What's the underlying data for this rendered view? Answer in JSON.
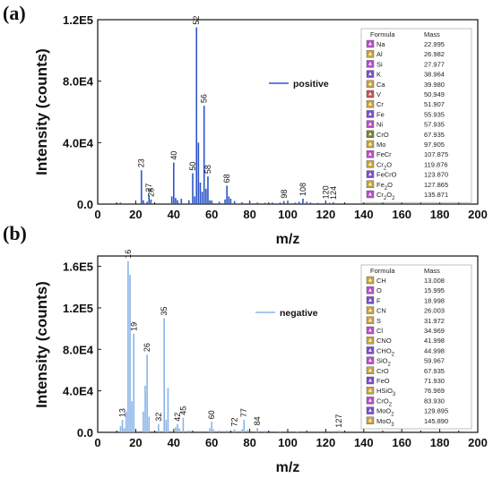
{
  "chart_data": [
    {
      "panel": "(a)",
      "type": "bar",
      "xlabel": "m/z",
      "ylabel": "Intensity (counts)",
      "xlim": [
        0,
        200
      ],
      "ylim": [
        0,
        120000
      ],
      "xticks": [
        "0",
        "20",
        "40",
        "60",
        "80",
        "100",
        "120",
        "140",
        "160",
        "180",
        "200"
      ],
      "yticks": [
        "0.0",
        "4.0E4",
        "8.0E4",
        "1.2E5"
      ],
      "series_name": "positive",
      "color": "#2e56c9",
      "peaks": [
        {
          "x": 23,
          "y": 22000,
          "label": "23"
        },
        {
          "x": 27,
          "y": 6000,
          "label": "27"
        },
        {
          "x": 28,
          "y": 3000,
          "label": "28"
        },
        {
          "x": 40,
          "y": 27000,
          "label": "40"
        },
        {
          "x": 50,
          "y": 20000,
          "label": "50"
        },
        {
          "x": 52,
          "y": 115000,
          "label": "52"
        },
        {
          "x": 56,
          "y": 64000,
          "label": "56"
        },
        {
          "x": 58,
          "y": 18000,
          "label": "58"
        },
        {
          "x": 68,
          "y": 12000,
          "label": "68"
        },
        {
          "x": 98,
          "y": 2000,
          "label": "98"
        },
        {
          "x": 108,
          "y": 3500,
          "label": "108"
        },
        {
          "x": 120,
          "y": 1500,
          "label": "120"
        },
        {
          "x": 124,
          "y": 1200,
          "label": "124"
        },
        {
          "x": 12,
          "y": 1000
        },
        {
          "x": 24,
          "y": 2500
        },
        {
          "x": 26,
          "y": 1500
        },
        {
          "x": 39,
          "y": 5000
        },
        {
          "x": 41,
          "y": 4000
        },
        {
          "x": 42,
          "y": 2500
        },
        {
          "x": 44,
          "y": 3500
        },
        {
          "x": 48,
          "y": 2500
        },
        {
          "x": 51,
          "y": 5000
        },
        {
          "x": 53,
          "y": 40000
        },
        {
          "x": 54,
          "y": 14000
        },
        {
          "x": 55,
          "y": 8000
        },
        {
          "x": 57,
          "y": 10000
        },
        {
          "x": 59,
          "y": 2500
        },
        {
          "x": 60,
          "y": 2000
        },
        {
          "x": 64,
          "y": 1500
        },
        {
          "x": 67,
          "y": 3000
        },
        {
          "x": 69,
          "y": 5000
        },
        {
          "x": 70,
          "y": 3500
        },
        {
          "x": 72,
          "y": 2000
        },
        {
          "x": 76,
          "y": 1200
        },
        {
          "x": 80,
          "y": 1500
        },
        {
          "x": 84,
          "y": 1000
        },
        {
          "x": 88,
          "y": 900
        },
        {
          "x": 92,
          "y": 1000
        },
        {
          "x": 96,
          "y": 1000
        },
        {
          "x": 100,
          "y": 1200
        },
        {
          "x": 104,
          "y": 1000
        },
        {
          "x": 106,
          "y": 1500
        },
        {
          "x": 110,
          "y": 1500
        },
        {
          "x": 112,
          "y": 1000
        },
        {
          "x": 116,
          "y": 800
        },
        {
          "x": 122,
          "y": 900
        }
      ],
      "table": {
        "headers": [
          "Formula",
          "Mass"
        ],
        "rows": [
          {
            "formula": "Na",
            "mass": "22.995",
            "color": "#b64fc8"
          },
          {
            "formula": "Al",
            "mass": "26.982",
            "color": "#c9a23c"
          },
          {
            "formula": "Si",
            "mass": "27.977",
            "color": "#b64fc8"
          },
          {
            "formula": "K",
            "mass": "38.964",
            "color": "#7a4fc8"
          },
          {
            "formula": "Ca",
            "mass": "39.980",
            "color": "#c9a23c"
          },
          {
            "formula": "V",
            "mass": "50.949",
            "color": "#c94f4f"
          },
          {
            "formula": "Cr",
            "mass": "51.907",
            "color": "#c9a23c"
          },
          {
            "formula": "Fe",
            "mass": "55.935",
            "color": "#7a4fc8"
          },
          {
            "formula": "Ni",
            "mass": "57.935",
            "color": "#b64fc8"
          },
          {
            "formula": "CrO",
            "mass": "67.935",
            "color": "#7a7f2c"
          },
          {
            "formula": "Mo",
            "mass": "97.905",
            "color": "#c9a23c"
          },
          {
            "formula": "FeCr",
            "mass": "107.875",
            "color": "#b64fc8"
          },
          {
            "formula": "Cr2O",
            "mass": "119.876",
            "color": "#c9a23c"
          },
          {
            "formula": "FeCrO",
            "mass": "123.870",
            "color": "#7a4fc8"
          },
          {
            "formula": "Fe2O",
            "mass": "127.865",
            "color": "#c9a23c"
          },
          {
            "formula": "Cr2O2",
            "mass": "135.871",
            "color": "#b64fc8"
          }
        ]
      }
    },
    {
      "panel": "(b)",
      "type": "bar",
      "xlabel": "m/z",
      "ylabel": "Intensity (counts)",
      "xlim": [
        0,
        200
      ],
      "ylim": [
        0,
        170000
      ],
      "xticks": [
        "0",
        "20",
        "40",
        "60",
        "80",
        "100",
        "120",
        "140",
        "160",
        "180",
        "200"
      ],
      "yticks": [
        "0.0",
        "4.0E4",
        "8.0E4",
        "1.2E5",
        "1.6E5"
      ],
      "series_name": "negative",
      "color": "#8ab4e8",
      "peaks": [
        {
          "x": 13,
          "y": 12000,
          "label": "13"
        },
        {
          "x": 16,
          "y": 165000,
          "label": "16"
        },
        {
          "x": 19,
          "y": 95000,
          "label": "19"
        },
        {
          "x": 26,
          "y": 75000,
          "label": "26"
        },
        {
          "x": 32,
          "y": 8000,
          "label": "32"
        },
        {
          "x": 35,
          "y": 110000,
          "label": "35"
        },
        {
          "x": 42,
          "y": 8000,
          "label": "42"
        },
        {
          "x": 45,
          "y": 14000,
          "label": "45"
        },
        {
          "x": 60,
          "y": 10000,
          "label": "60"
        },
        {
          "x": 72,
          "y": 3000,
          "label": "72"
        },
        {
          "x": 77,
          "y": 12000,
          "label": "77"
        },
        {
          "x": 84,
          "y": 4000,
          "label": "84"
        },
        {
          "x": 127,
          "y": 2000,
          "label": "127"
        },
        {
          "x": 12,
          "y": 6000
        },
        {
          "x": 14,
          "y": 4000
        },
        {
          "x": 15,
          "y": 20000
        },
        {
          "x": 17,
          "y": 152000
        },
        {
          "x": 18,
          "y": 30000
        },
        {
          "x": 24,
          "y": 20000
        },
        {
          "x": 25,
          "y": 45000
        },
        {
          "x": 27,
          "y": 15000
        },
        {
          "x": 36,
          "y": 12000
        },
        {
          "x": 37,
          "y": 43000
        },
        {
          "x": 41,
          "y": 5000
        },
        {
          "x": 43,
          "y": 4000
        },
        {
          "x": 48,
          "y": 2000
        },
        {
          "x": 59,
          "y": 4000
        },
        {
          "x": 61,
          "y": 3000
        },
        {
          "x": 64,
          "y": 2000
        },
        {
          "x": 68,
          "y": 1800
        },
        {
          "x": 76,
          "y": 3000
        },
        {
          "x": 79,
          "y": 2500
        },
        {
          "x": 88,
          "y": 1500
        },
        {
          "x": 96,
          "y": 1000
        },
        {
          "x": 105,
          "y": 900
        }
      ],
      "table": {
        "headers": [
          "Formula",
          "Mass"
        ],
        "rows": [
          {
            "formula": "CH",
            "mass": "13.008",
            "color": "#c9a23c"
          },
          {
            "formula": "O",
            "mass": "15.995",
            "color": "#b64fc8"
          },
          {
            "formula": "F",
            "mass": "18.998",
            "color": "#7a4fc8"
          },
          {
            "formula": "CN",
            "mass": "26.003",
            "color": "#c9a23c"
          },
          {
            "formula": "S",
            "mass": "31.972",
            "color": "#c9a23c"
          },
          {
            "formula": "Cl",
            "mass": "34.969",
            "color": "#b64fc8"
          },
          {
            "formula": "CNO",
            "mass": "41.998",
            "color": "#c9a23c"
          },
          {
            "formula": "CHO2",
            "mass": "44.998",
            "color": "#7a4fc8"
          },
          {
            "formula": "SiO2",
            "mass": "59.967",
            "color": "#b64fc8"
          },
          {
            "formula": "CrO",
            "mass": "67.935",
            "color": "#c9a23c"
          },
          {
            "formula": "FeO",
            "mass": "71.930",
            "color": "#7a4fc8"
          },
          {
            "formula": "HSiO3",
            "mass": "76.969",
            "color": "#c9a23c"
          },
          {
            "formula": "CrO2",
            "mass": "83.930",
            "color": "#b64fc8"
          },
          {
            "formula": "MoO2",
            "mass": "129.895",
            "color": "#7a4fc8"
          },
          {
            "formula": "MoO3",
            "mass": "145.890",
            "color": "#c9a23c"
          }
        ]
      }
    }
  ]
}
